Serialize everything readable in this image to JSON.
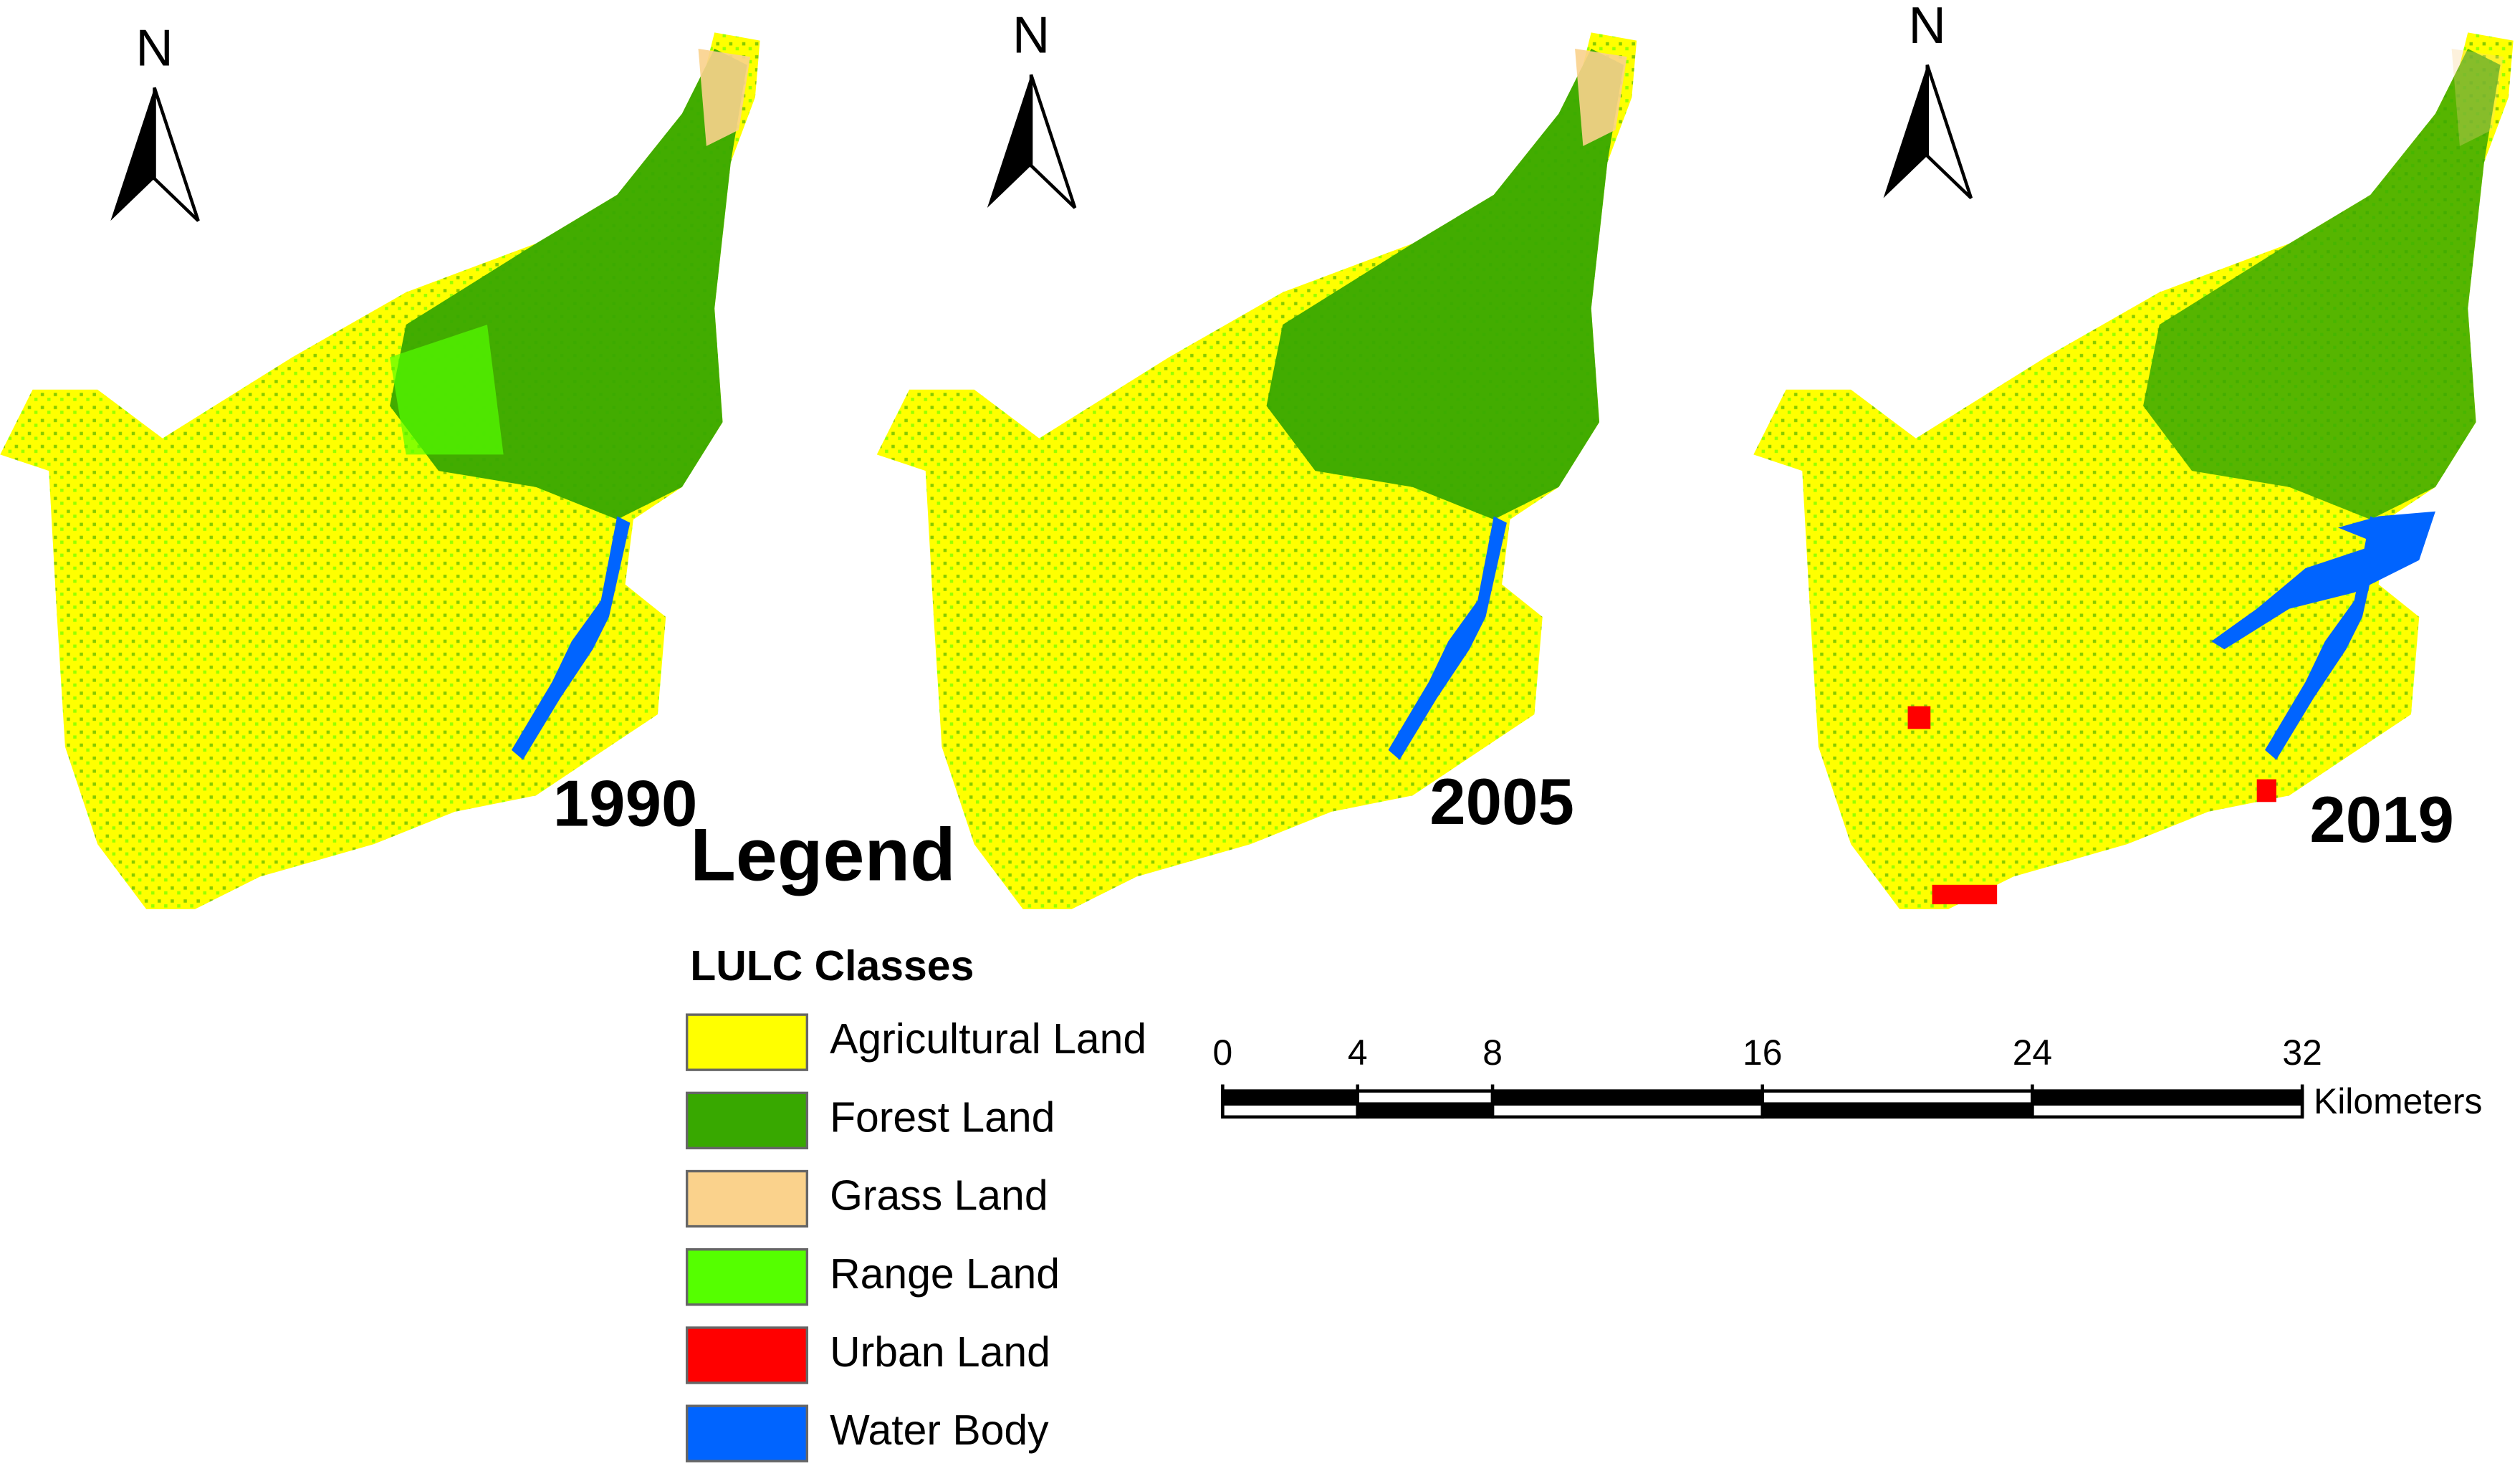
{
  "maps": [
    {
      "year": "1990",
      "north": "N"
    },
    {
      "year": "2005",
      "north": "N"
    },
    {
      "year": "2019",
      "north": "N"
    }
  ],
  "legend": {
    "title": "Legend",
    "subtitle": "LULC Classes",
    "classes": [
      {
        "name": "Agricultural Land",
        "color": "#ffff00"
      },
      {
        "name": "Forest Land",
        "color": "#38a800"
      },
      {
        "name": "Grass Land",
        "color": "#fad28c"
      },
      {
        "name": "Range Land",
        "color": "#55ff00"
      },
      {
        "name": "Urban Land",
        "color": "#ff0000"
      },
      {
        "name": "Water Body",
        "color": "#0064ff"
      }
    ]
  },
  "scale_bar": {
    "ticks": [
      0,
      4,
      8,
      16,
      24,
      32
    ],
    "unit": "Kilometers"
  }
}
